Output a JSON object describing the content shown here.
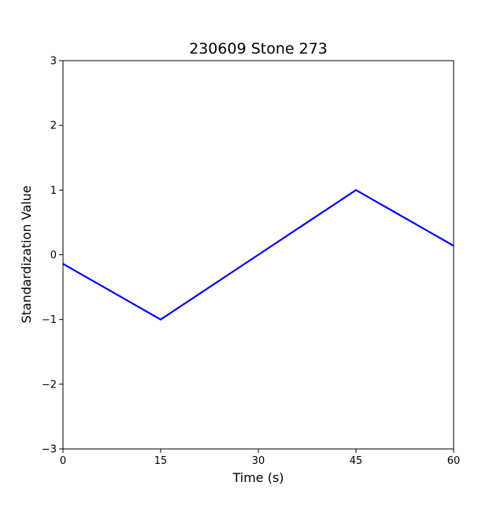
{
  "chart_data": {
    "type": "line",
    "title": "230609 Stone 273",
    "xlabel": "Time (s)",
    "ylabel": "Standardization Value",
    "xlim": [
      0,
      60
    ],
    "ylim": [
      -3,
      3
    ],
    "xticks": [
      0,
      15,
      30,
      45,
      60
    ],
    "yticks": [
      -3,
      -2,
      -1,
      0,
      1,
      2,
      3
    ],
    "ytick_labels": [
      "−3",
      "−2",
      "−1",
      "0",
      "1",
      "2",
      "3"
    ],
    "grid": false,
    "series": [
      {
        "color": "#0000ff",
        "x": [
          0,
          15,
          30,
          45,
          60
        ],
        "y": [
          -0.14,
          -1.0,
          0.0,
          1.0,
          0.14
        ]
      }
    ]
  }
}
